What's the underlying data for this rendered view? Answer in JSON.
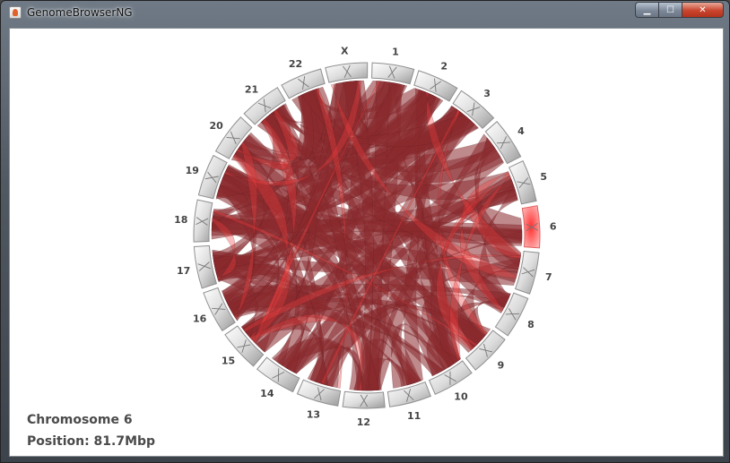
{
  "window": {
    "title": "GenomeBrowserNG"
  },
  "titlebar_buttons": {
    "minimize": "▁",
    "maximize": "☐",
    "close": "✕"
  },
  "icons": {
    "app": "java-cup-icon"
  },
  "colors": {
    "link": "#8b2a2e",
    "link_highlight": "#ef3b3b",
    "ideogram": "#e8e8e8",
    "selected": "#ff6b6b",
    "label": "#444444"
  },
  "chromosomes": [
    "1",
    "2",
    "3",
    "4",
    "5",
    "6",
    "7",
    "8",
    "9",
    "10",
    "11",
    "12",
    "13",
    "14",
    "15",
    "16",
    "17",
    "18",
    "19",
    "20",
    "21",
    "22",
    "X"
  ],
  "selected_chromosome": "6",
  "info": {
    "chromosome_label": "Chromosome 6",
    "position_label": "Position: 81.7Mbp"
  }
}
